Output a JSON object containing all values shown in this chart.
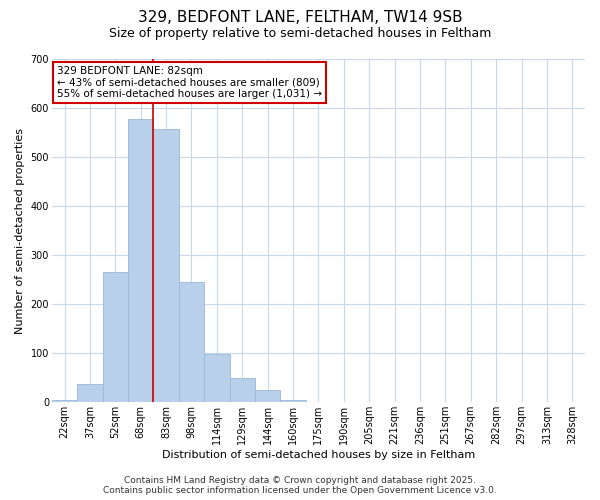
{
  "title": "329, BEDFONT LANE, FELTHAM, TW14 9SB",
  "subtitle": "Size of property relative to semi-detached houses in Feltham",
  "xlabel": "Distribution of semi-detached houses by size in Feltham",
  "ylabel": "Number of semi-detached properties",
  "bar_labels": [
    "22sqm",
    "37sqm",
    "52sqm",
    "68sqm",
    "83sqm",
    "98sqm",
    "114sqm",
    "129sqm",
    "144sqm",
    "160sqm",
    "175sqm",
    "190sqm",
    "205sqm",
    "221sqm",
    "236sqm",
    "251sqm",
    "267sqm",
    "282sqm",
    "297sqm",
    "313sqm",
    "328sqm"
  ],
  "bar_values": [
    5,
    37,
    265,
    578,
    558,
    245,
    99,
    49,
    26,
    5,
    0,
    0,
    0,
    0,
    0,
    0,
    0,
    0,
    0,
    0,
    0
  ],
  "bar_color": "#b8d0ea",
  "bar_edge_color": "#9ab8d8",
  "vline_color": "#cc0000",
  "vline_x": 3.5,
  "annotation_title": "329 BEDFONT LANE: 82sqm",
  "annotation_line1": "← 43% of semi-detached houses are smaller (809)",
  "annotation_line2": "55% of semi-detached houses are larger (1,031) →",
  "annotation_box_color": "#ffffff",
  "annotation_box_edge": "#cc0000",
  "ylim": [
    0,
    700
  ],
  "yticks": [
    0,
    100,
    200,
    300,
    400,
    500,
    600,
    700
  ],
  "footer_line1": "Contains HM Land Registry data © Crown copyright and database right 2025.",
  "footer_line2": "Contains public sector information licensed under the Open Government Licence v3.0.",
  "background_color": "#ffffff",
  "grid_color": "#c8d8ec",
  "title_fontsize": 11,
  "subtitle_fontsize": 9,
  "axis_label_fontsize": 8,
  "tick_fontsize": 7,
  "annotation_fontsize": 7.5,
  "footer_fontsize": 6.5
}
